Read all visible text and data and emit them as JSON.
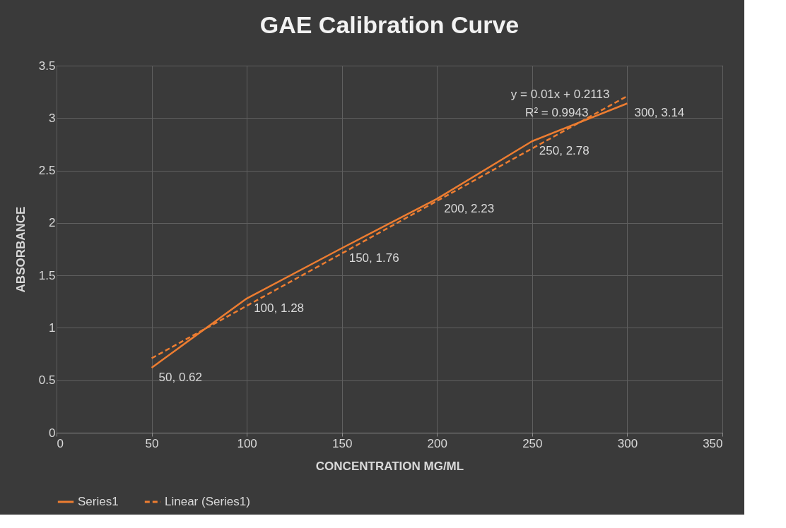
{
  "chart_data": {
    "type": "line",
    "title": "GAE Calibration Curve",
    "xlabel": "CONCENTRATION MG/ML",
    "ylabel": "ABSORBANCE",
    "x": [
      50,
      100,
      150,
      200,
      250,
      300
    ],
    "series": [
      {
        "name": "Series1",
        "color": "#ed7d31",
        "values": [
          0.62,
          1.28,
          1.76,
          2.23,
          2.78,
          3.14
        ],
        "value_labels": [
          "50, 0.62",
          "100, 1.28",
          "150, 1.76",
          "200, 2.23",
          "250, 2.78",
          "300, 3.14"
        ],
        "line_style": "solid"
      },
      {
        "name": "Linear (Series1)",
        "color": "#ed7d31",
        "type": "line",
        "x": [
          50,
          300
        ],
        "values": [
          0.71,
          3.21
        ],
        "line_style": "dashed"
      }
    ],
    "annotations": [
      "y = 0.01x + 0.2113",
      "R² = 0.9943"
    ],
    "xlim": [
      0,
      350
    ],
    "xticks": [
      0,
      50,
      100,
      150,
      200,
      250,
      300,
      350
    ],
    "ylim": [
      0,
      3.5
    ],
    "yticks": [
      0,
      0.5,
      1,
      1.5,
      2,
      2.5,
      3,
      3.5
    ],
    "grid": true,
    "legend": "bottom",
    "marker": "none"
  }
}
